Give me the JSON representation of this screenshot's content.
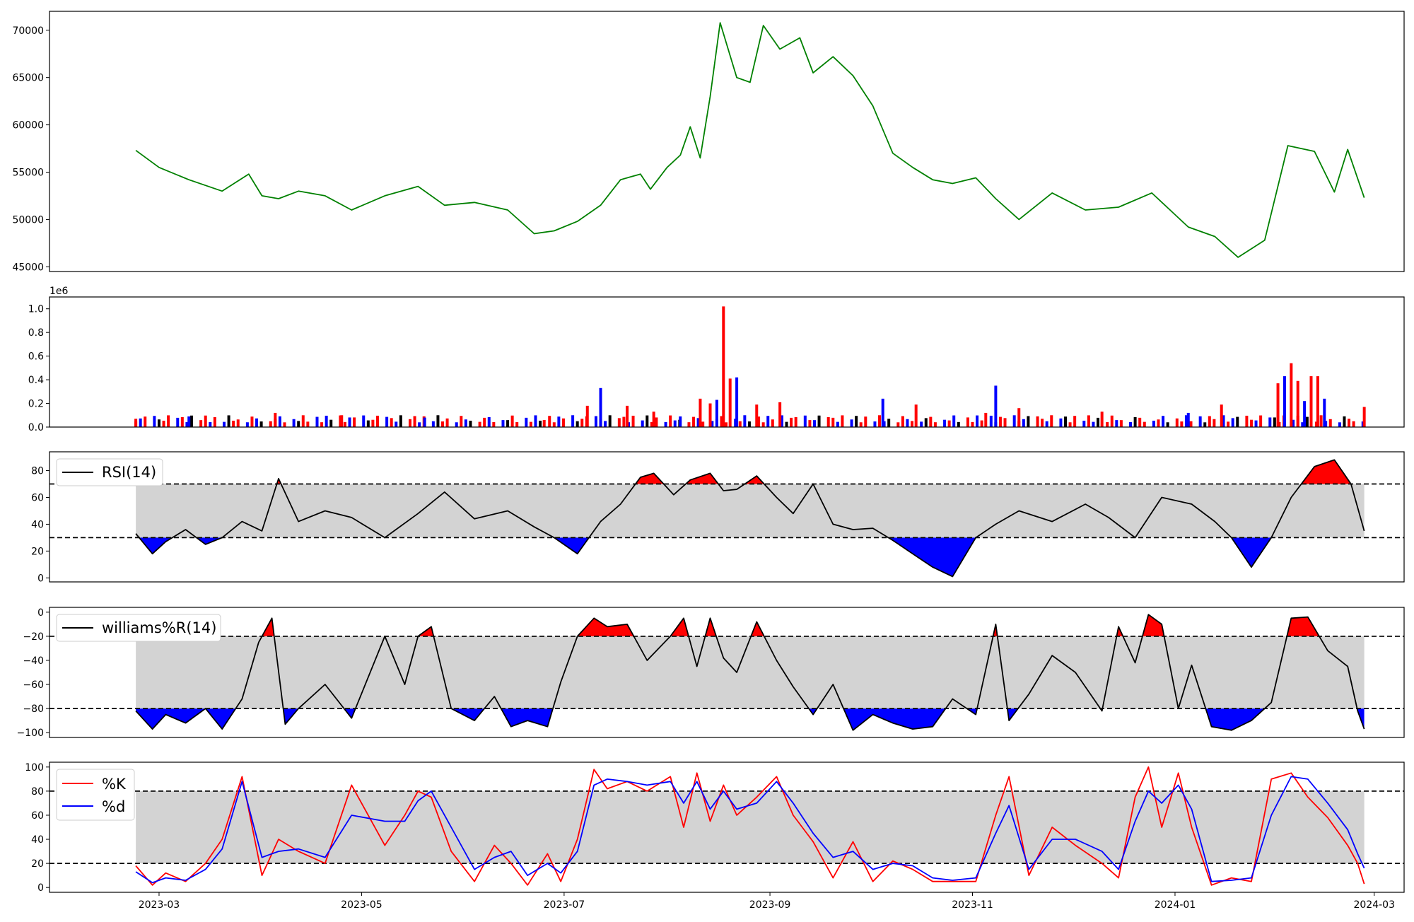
{
  "chart_data": [
    {
      "type": "line",
      "panel": "price",
      "xlim": [
        "2023-01-27",
        "2024-03-10"
      ],
      "ylim": [
        44500,
        72000
      ],
      "yticks": [
        45000,
        50000,
        55000,
        60000,
        65000,
        70000
      ],
      "ytick_labels": [
        "45000",
        "50000",
        "55000",
        "60000",
        "65000",
        "70000"
      ],
      "color": "#008000",
      "series": [
        {
          "x": [
            "2023-02-22",
            "2023-03-01",
            "2023-03-10",
            "2023-03-20",
            "2023-03-28",
            "2023-04-01",
            "2023-04-06",
            "2023-04-12",
            "2023-04-20",
            "2023-04-28",
            "2023-05-08",
            "2023-05-18",
            "2023-05-26",
            "2023-06-04",
            "2023-06-14",
            "2023-06-22",
            "2023-06-28",
            "2023-07-05",
            "2023-07-12",
            "2023-07-18",
            "2023-07-24",
            "2023-07-27",
            "2023-08-01",
            "2023-08-05",
            "2023-08-08",
            "2023-08-11",
            "2023-08-14",
            "2023-08-17",
            "2023-08-22",
            "2023-08-26",
            "2023-08-30",
            "2023-09-04",
            "2023-09-10",
            "2023-09-14",
            "2023-09-20",
            "2023-09-26",
            "2023-10-02",
            "2023-10-08",
            "2023-10-14",
            "2023-10-20",
            "2023-10-26",
            "2023-11-02",
            "2023-11-08",
            "2023-11-15",
            "2023-11-25",
            "2023-12-05",
            "2023-12-15",
            "2023-12-25",
            "2024-01-05",
            "2024-01-13",
            "2024-01-20",
            "2024-01-28",
            "2024-02-04",
            "2024-02-12",
            "2024-02-18",
            "2024-02-22",
            "2024-02-27"
          ],
          "values": [
            57300,
            55500,
            54200,
            53000,
            54800,
            52500,
            52200,
            53000,
            52500,
            51000,
            52500,
            53500,
            51500,
            51800,
            51000,
            48500,
            48800,
            49800,
            51500,
            54200,
            54800,
            53200,
            55500,
            56800,
            59800,
            56500,
            63000,
            70800,
            65000,
            64500,
            70500,
            68000,
            69200,
            65500,
            67200,
            65200,
            62000,
            57000,
            55500,
            54200,
            53800,
            54400,
            52200,
            50000,
            52800,
            51000,
            51300,
            52800,
            49200,
            48200,
            46000,
            47800,
            57800,
            57200,
            52900,
            57400,
            52300
          ]
        }
      ]
    },
    {
      "type": "bar",
      "panel": "volume",
      "xlim": [
        "2023-01-27",
        "2024-03-10"
      ],
      "ylim": [
        0,
        1.1
      ],
      "scale_label": "1e6",
      "yticks": [
        0.0,
        0.2,
        0.4,
        0.6,
        0.8,
        1.0
      ],
      "ytick_labels": [
        "0.0",
        "0.2",
        "0.4",
        "0.6",
        "0.8",
        "1.0"
      ],
      "colors": {
        "up": "#ff0000",
        "down": "#0000ff",
        "flat": "#000000"
      },
      "series": [
        {
          "x": [
            "2023-02-22",
            "2023-03-10",
            "2023-04-05",
            "2023-04-25",
            "2023-05-20",
            "2023-06-25",
            "2023-07-08",
            "2023-07-12",
            "2023-07-20",
            "2023-07-28",
            "2023-08-05",
            "2023-08-11",
            "2023-08-14",
            "2023-08-16",
            "2023-08-18",
            "2023-08-20",
            "2023-08-22",
            "2023-08-28",
            "2023-09-04",
            "2023-10-05",
            "2023-10-15",
            "2023-11-05",
            "2023-11-08",
            "2023-11-15",
            "2023-12-10",
            "2024-01-05",
            "2024-01-15",
            "2024-02-01",
            "2024-02-03",
            "2024-02-05",
            "2024-02-07",
            "2024-02-09",
            "2024-02-11",
            "2024-02-13",
            "2024-02-15",
            "2024-02-27"
          ],
          "values": [
            0.07,
            0.09,
            0.12,
            0.1,
            0.08,
            0.06,
            0.18,
            0.33,
            0.18,
            0.13,
            0.09,
            0.24,
            0.2,
            0.23,
            1.02,
            0.41,
            0.42,
            0.19,
            0.21,
            0.24,
            0.19,
            0.12,
            0.35,
            0.16,
            0.13,
            0.12,
            0.19,
            0.37,
            0.43,
            0.54,
            0.39,
            0.22,
            0.43,
            0.43,
            0.24,
            0.17
          ]
        }
      ]
    },
    {
      "type": "line",
      "panel": "rsi",
      "xlim": [
        "2023-01-27",
        "2024-03-10"
      ],
      "ylim": [
        -3,
        94
      ],
      "yticks": [
        0,
        20,
        40,
        60,
        80
      ],
      "ytick_labels": [
        "0",
        "20",
        "40",
        "60",
        "80"
      ],
      "thresholds": [
        30,
        70
      ],
      "legend": {
        "label": "RSI(14)",
        "placement": "upper left"
      },
      "series": [
        {
          "name": "RSI(14)",
          "x": [
            "2023-02-22",
            "2023-02-27",
            "2023-03-03",
            "2023-03-09",
            "2023-03-15",
            "2023-03-20",
            "2023-03-26",
            "2023-04-01",
            "2023-04-06",
            "2023-04-12",
            "2023-04-20",
            "2023-04-28",
            "2023-05-08",
            "2023-05-18",
            "2023-05-26",
            "2023-06-04",
            "2023-06-14",
            "2023-06-22",
            "2023-06-28",
            "2023-07-05",
            "2023-07-12",
            "2023-07-18",
            "2023-07-24",
            "2023-07-28",
            "2023-08-03",
            "2023-08-08",
            "2023-08-14",
            "2023-08-18",
            "2023-08-22",
            "2023-08-28",
            "2023-09-03",
            "2023-09-08",
            "2023-09-14",
            "2023-09-20",
            "2023-09-26",
            "2023-10-02",
            "2023-10-08",
            "2023-10-14",
            "2023-10-20",
            "2023-10-26",
            "2023-11-02",
            "2023-11-08",
            "2023-11-15",
            "2023-11-25",
            "2023-12-05",
            "2023-12-12",
            "2023-12-20",
            "2023-12-28",
            "2024-01-06",
            "2024-01-13",
            "2024-01-18",
            "2024-01-24",
            "2024-01-30",
            "2024-02-05",
            "2024-02-12",
            "2024-02-18",
            "2024-02-23",
            "2024-02-27"
          ],
          "values": [
            33,
            18,
            27,
            36,
            25,
            30,
            42,
            35,
            74,
            42,
            50,
            45,
            30,
            48,
            64,
            44,
            50,
            38,
            30,
            18,
            42,
            55,
            75,
            78,
            62,
            73,
            78,
            65,
            66,
            76,
            60,
            48,
            70,
            40,
            36,
            37,
            28,
            18,
            8,
            1,
            30,
            40,
            50,
            42,
            55,
            45,
            30,
            60,
            55,
            42,
            30,
            8,
            30,
            60,
            83,
            88,
            70,
            35
          ]
        }
      ]
    },
    {
      "type": "line",
      "panel": "williams",
      "xlim": [
        "2023-01-27",
        "2024-03-10"
      ],
      "ylim": [
        -104,
        4
      ],
      "yticks": [
        -100,
        -80,
        -60,
        -40,
        -20,
        0
      ],
      "ytick_labels": [
        "−100",
        "−80",
        "−60",
        "−40",
        "−20",
        "0"
      ],
      "thresholds": [
        -20,
        -80
      ],
      "legend": {
        "label": "williams%R(14)",
        "placement": "upper left"
      },
      "series": [
        {
          "name": "williams%R(14)",
          "x": [
            "2023-02-22",
            "2023-02-27",
            "2023-03-03",
            "2023-03-09",
            "2023-03-15",
            "2023-03-20",
            "2023-03-26",
            "2023-03-31",
            "2023-04-04",
            "2023-04-08",
            "2023-04-12",
            "2023-04-20",
            "2023-04-28",
            "2023-05-08",
            "2023-05-14",
            "2023-05-18",
            "2023-05-22",
            "2023-05-28",
            "2023-06-04",
            "2023-06-10",
            "2023-06-15",
            "2023-06-20",
            "2023-06-26",
            "2023-06-30",
            "2023-07-05",
            "2023-07-10",
            "2023-07-14",
            "2023-07-20",
            "2023-07-26",
            "2023-08-02",
            "2023-08-06",
            "2023-08-10",
            "2023-08-14",
            "2023-08-18",
            "2023-08-22",
            "2023-08-28",
            "2023-09-03",
            "2023-09-08",
            "2023-09-14",
            "2023-09-20",
            "2023-09-26",
            "2023-10-02",
            "2023-10-08",
            "2023-10-14",
            "2023-10-20",
            "2023-10-26",
            "2023-11-02",
            "2023-11-08",
            "2023-11-12",
            "2023-11-18",
            "2023-11-25",
            "2023-12-02",
            "2023-12-10",
            "2023-12-15",
            "2023-12-20",
            "2023-12-24",
            "2023-12-28",
            "2024-01-02",
            "2024-01-06",
            "2024-01-12",
            "2024-01-18",
            "2024-01-24",
            "2024-01-30",
            "2024-02-05",
            "2024-02-10",
            "2024-02-16",
            "2024-02-22",
            "2024-02-25",
            "2024-02-27"
          ],
          "values": [
            -82,
            -97,
            -85,
            -92,
            -80,
            -97,
            -72,
            -25,
            -5,
            -93,
            -80,
            -60,
            -88,
            -20,
            -60,
            -20,
            -12,
            -80,
            -90,
            -70,
            -95,
            -90,
            -95,
            -58,
            -20,
            -5,
            -12,
            -10,
            -40,
            -20,
            -5,
            -45,
            -5,
            -38,
            -50,
            -8,
            -40,
            -62,
            -85,
            -60,
            -98,
            -85,
            -92,
            -97,
            -95,
            -72,
            -85,
            -10,
            -90,
            -68,
            -36,
            -50,
            -82,
            -12,
            -42,
            -2,
            -10,
            -80,
            -44,
            -95,
            -98,
            -90,
            -75,
            -5,
            -4,
            -32,
            -45,
            -82,
            -97
          ]
        }
      ]
    },
    {
      "type": "line",
      "panel": "stochastic",
      "xlim": [
        "2023-01-27",
        "2024-03-10"
      ],
      "ylim": [
        -4,
        104
      ],
      "yticks": [
        0,
        20,
        40,
        60,
        80,
        100
      ],
      "ytick_labels": [
        "0",
        "20",
        "40",
        "60",
        "80",
        "100"
      ],
      "thresholds": [
        20,
        80
      ],
      "xticks": [
        "2023-03-01",
        "2023-05-01",
        "2023-07-01",
        "2023-09-01",
        "2023-11-01",
        "2024-01-01",
        "2024-03-01"
      ],
      "xtick_labels": [
        "2023-03",
        "2023-05",
        "2023-07",
        "2023-09",
        "2023-11",
        "2024-01",
        "2024-03"
      ],
      "legend": {
        "placement": "upper left"
      },
      "series": [
        {
          "name": "%K",
          "color": "#ff0000",
          "x": [
            "2023-02-22",
            "2023-02-27",
            "2023-03-03",
            "2023-03-09",
            "2023-03-15",
            "2023-03-20",
            "2023-03-26",
            "2023-04-01",
            "2023-04-06",
            "2023-04-12",
            "2023-04-20",
            "2023-04-28",
            "2023-05-08",
            "2023-05-14",
            "2023-05-18",
            "2023-05-22",
            "2023-05-28",
            "2023-06-04",
            "2023-06-10",
            "2023-06-15",
            "2023-06-20",
            "2023-06-26",
            "2023-06-30",
            "2023-07-05",
            "2023-07-10",
            "2023-07-14",
            "2023-07-20",
            "2023-07-26",
            "2023-08-02",
            "2023-08-06",
            "2023-08-10",
            "2023-08-14",
            "2023-08-18",
            "2023-08-22",
            "2023-08-28",
            "2023-09-03",
            "2023-09-08",
            "2023-09-14",
            "2023-09-20",
            "2023-09-26",
            "2023-10-02",
            "2023-10-08",
            "2023-10-14",
            "2023-10-20",
            "2023-10-26",
            "2023-11-02",
            "2023-11-08",
            "2023-11-12",
            "2023-11-18",
            "2023-11-25",
            "2023-12-02",
            "2023-12-10",
            "2023-12-15",
            "2023-12-20",
            "2023-12-24",
            "2023-12-28",
            "2024-01-02",
            "2024-01-06",
            "2024-01-12",
            "2024-01-18",
            "2024-01-24",
            "2024-01-30",
            "2024-02-05",
            "2024-02-10",
            "2024-02-16",
            "2024-02-22",
            "2024-02-25",
            "2024-02-27"
          ],
          "values": [
            18,
            2,
            12,
            5,
            20,
            40,
            92,
            10,
            40,
            30,
            20,
            85,
            35,
            60,
            80,
            75,
            30,
            5,
            35,
            20,
            2,
            28,
            5,
            40,
            98,
            82,
            88,
            80,
            92,
            50,
            95,
            55,
            85,
            60,
            75,
            92,
            60,
            38,
            8,
            38,
            5,
            22,
            15,
            5,
            5,
            5,
            60,
            92,
            10,
            50,
            35,
            20,
            8,
            75,
            100,
            50,
            95,
            50,
            2,
            8,
            5,
            90,
            95,
            75,
            58,
            35,
            20,
            3
          ]
        },
        {
          "name": "%d",
          "color": "#0000ff",
          "x": [
            "2023-02-22",
            "2023-02-27",
            "2023-03-03",
            "2023-03-09",
            "2023-03-15",
            "2023-03-20",
            "2023-03-26",
            "2023-04-01",
            "2023-04-06",
            "2023-04-12",
            "2023-04-20",
            "2023-04-28",
            "2023-05-08",
            "2023-05-14",
            "2023-05-18",
            "2023-05-22",
            "2023-05-28",
            "2023-06-04",
            "2023-06-10",
            "2023-06-15",
            "2023-06-20",
            "2023-06-26",
            "2023-06-30",
            "2023-07-05",
            "2023-07-10",
            "2023-07-14",
            "2023-07-20",
            "2023-07-26",
            "2023-08-02",
            "2023-08-06",
            "2023-08-10",
            "2023-08-14",
            "2023-08-18",
            "2023-08-22",
            "2023-08-28",
            "2023-09-03",
            "2023-09-08",
            "2023-09-14",
            "2023-09-20",
            "2023-09-26",
            "2023-10-02",
            "2023-10-08",
            "2023-10-14",
            "2023-10-20",
            "2023-10-26",
            "2023-11-02",
            "2023-11-08",
            "2023-11-12",
            "2023-11-18",
            "2023-11-25",
            "2023-12-02",
            "2023-12-10",
            "2023-12-15",
            "2023-12-20",
            "2023-12-24",
            "2023-12-28",
            "2024-01-02",
            "2024-01-06",
            "2024-01-12",
            "2024-01-18",
            "2024-01-24",
            "2024-01-30",
            "2024-02-05",
            "2024-02-10",
            "2024-02-16",
            "2024-02-22",
            "2024-02-25",
            "2024-02-27"
          ],
          "values": [
            13,
            4,
            8,
            6,
            15,
            32,
            88,
            25,
            30,
            32,
            25,
            60,
            55,
            55,
            72,
            80,
            50,
            15,
            25,
            30,
            10,
            20,
            12,
            30,
            85,
            90,
            88,
            85,
            88,
            70,
            88,
            65,
            80,
            65,
            70,
            88,
            70,
            45,
            25,
            30,
            15,
            20,
            18,
            8,
            6,
            8,
            45,
            68,
            15,
            40,
            40,
            30,
            15,
            55,
            80,
            70,
            85,
            65,
            5,
            6,
            8,
            60,
            92,
            90,
            70,
            48,
            28,
            16
          ]
        }
      ]
    }
  ]
}
